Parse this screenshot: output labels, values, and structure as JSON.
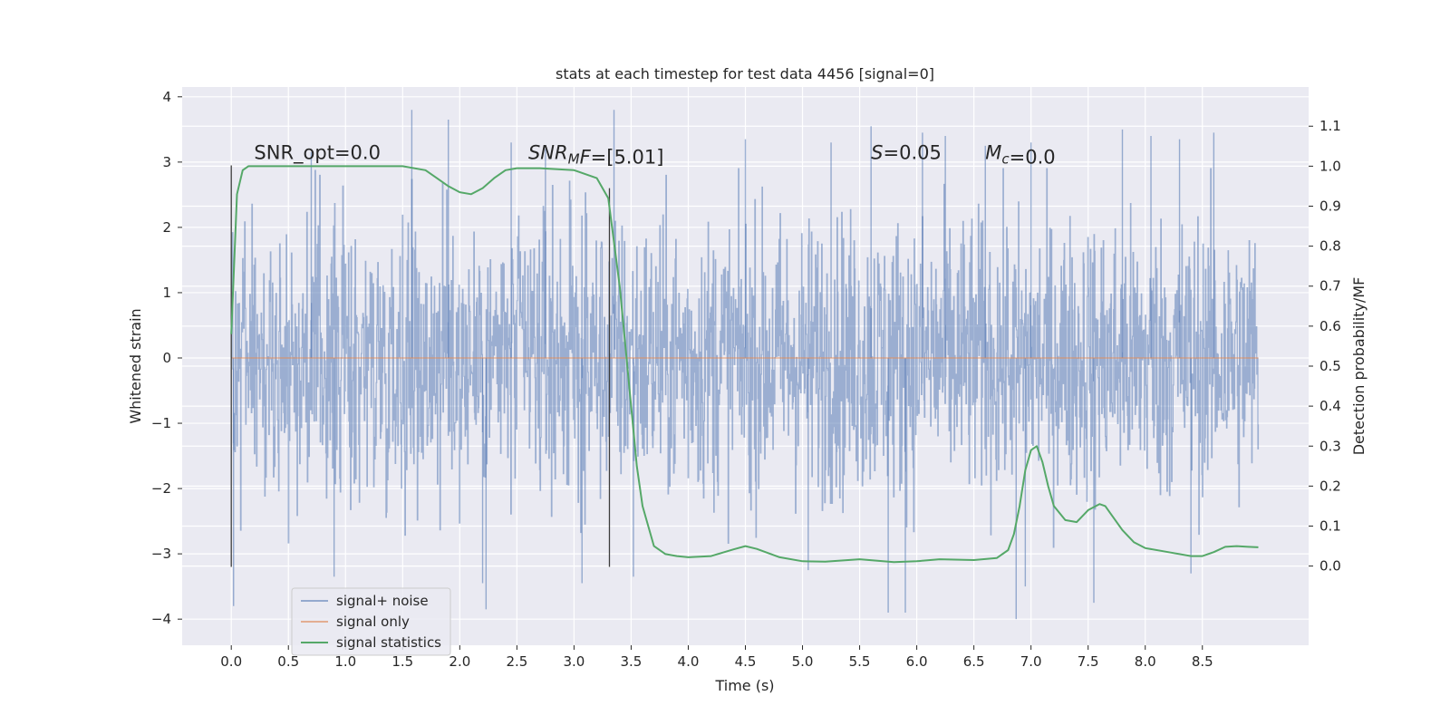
{
  "chart_data": {
    "type": "line",
    "title": "stats at each timestep for test data 4456 [signal=0]",
    "xlabel": "Time (s)",
    "ylabel": "Whitened strain",
    "y2label": "Detection probability/MF",
    "xlim": [
      -0.43,
      9.43
    ],
    "ylim": [
      -4.4,
      4.15
    ],
    "y2lim": [
      -0.198,
      1.198
    ],
    "x_ticks": [
      0.0,
      0.5,
      1.0,
      1.5,
      2.0,
      2.5,
      3.0,
      3.5,
      4.0,
      4.5,
      5.0,
      5.5,
      6.0,
      6.5,
      7.0,
      7.5,
      8.0,
      8.5
    ],
    "x_tick_labels": [
      "0.0",
      "0.5",
      "1.0",
      "1.5",
      "2.0",
      "2.5",
      "3.0",
      "3.5",
      "4.0",
      "4.5",
      "5.0",
      "5.5",
      "6.0",
      "6.5",
      "7.0",
      "7.5",
      "8.0",
      "8.5"
    ],
    "y_ticks": [
      -4,
      -3,
      -2,
      -1,
      0,
      1,
      2,
      3,
      4
    ],
    "y_tick_labels": [
      "−4",
      "−3",
      "−2",
      "−1",
      "0",
      "1",
      "2",
      "3",
      "4"
    ],
    "y2_ticks": [
      0.0,
      0.1,
      0.2,
      0.3,
      0.4,
      0.5,
      0.6,
      0.7,
      0.8,
      0.9,
      1.0,
      1.1
    ],
    "y2_tick_labels": [
      "0.0",
      "0.1",
      "0.2",
      "0.3",
      "0.4",
      "0.5",
      "0.6",
      "0.7",
      "0.8",
      "0.9",
      "1.0",
      "1.1"
    ],
    "grid": true,
    "legend_position": "lower-left",
    "annotations": [
      {
        "x": 0.2,
        "y": 3.05,
        "parts": [
          {
            "t": "SNR_opt=0.0",
            "i": false
          }
        ]
      },
      {
        "x": 2.6,
        "y": 3.05,
        "parts": [
          {
            "t": "SNR",
            "i": true
          },
          {
            "t": "M",
            "i": true,
            "sub": true
          },
          {
            "t": "F",
            "i": true
          },
          {
            "t": "=[5.01]",
            "i": false
          }
        ]
      },
      {
        "x": 5.6,
        "y": 3.05,
        "parts": [
          {
            "t": "S",
            "i": true
          },
          {
            "t": "=0.05",
            "i": false
          }
        ]
      },
      {
        "x": 6.6,
        "y": 3.05,
        "parts": [
          {
            "t": "M",
            "i": true
          },
          {
            "t": "c",
            "i": true,
            "sub": true
          },
          {
            "t": "=0.0",
            "i": false
          }
        ]
      }
    ],
    "vertical_lines": [
      {
        "x": 0.0,
        "ymin": -3.2,
        "ymax": 2.95
      },
      {
        "x": 3.31,
        "ymin": -3.2,
        "ymax": 2.6
      }
    ],
    "series": [
      {
        "name": "signal+ noise",
        "color": "#4c72b0",
        "axis": "left",
        "style": "noise",
        "x_range": [
          0.0,
          8.99
        ],
        "samples": 2000,
        "base_amplitude": 1.95,
        "peaks": [
          {
            "x": 0.02,
            "y": -3.8
          },
          {
            "x": 1.58,
            "y": 3.8
          },
          {
            "x": 1.9,
            "y": 3.65
          },
          {
            "x": 3.35,
            "y": 3.8
          },
          {
            "x": 2.2,
            "y": -3.45
          },
          {
            "x": 2.23,
            "y": -3.85
          },
          {
            "x": 0.9,
            "y": -3.35
          },
          {
            "x": 6.87,
            "y": -4.0
          },
          {
            "x": 5.75,
            "y": -3.9
          },
          {
            "x": 7.55,
            "y": -3.75
          },
          {
            "x": 3.07,
            "y": -3.45
          },
          {
            "x": 3.52,
            "y": -3.35
          },
          {
            "x": 8.4,
            "y": -3.3
          },
          {
            "x": 5.05,
            "y": -3.25
          },
          {
            "x": 5.9,
            "y": -3.9
          },
          {
            "x": 6.95,
            "y": -3.5
          },
          {
            "x": 4.5,
            "y": 3.35
          },
          {
            "x": 5.6,
            "y": 3.55
          },
          {
            "x": 6.05,
            "y": 3.45
          },
          {
            "x": 6.25,
            "y": 3.4
          },
          {
            "x": 7.8,
            "y": 3.5
          },
          {
            "x": 8.05,
            "y": 3.4
          },
          {
            "x": 8.6,
            "y": 3.45
          },
          {
            "x": 2.45,
            "y": 3.3
          },
          {
            "x": 2.75,
            "y": 3.2
          },
          {
            "x": 0.7,
            "y": 3.15
          },
          {
            "x": 5.25,
            "y": 3.3
          },
          {
            "x": 6.6,
            "y": 3.25
          },
          {
            "x": 7.0,
            "y": 3.3
          },
          {
            "x": 8.3,
            "y": 3.35
          }
        ]
      },
      {
        "name": "signal only",
        "color": "#dd8452",
        "axis": "left",
        "x": [
          0.0,
          8.99
        ],
        "y": [
          0.0,
          0.0
        ]
      },
      {
        "name": "signal statistics",
        "color": "#55a868",
        "axis": "right",
        "x": [
          0.0,
          0.05,
          0.1,
          0.15,
          0.2,
          0.3,
          0.5,
          1.0,
          1.5,
          1.7,
          1.8,
          1.9,
          2.0,
          2.1,
          2.2,
          2.3,
          2.4,
          2.5,
          2.7,
          3.0,
          3.2,
          3.3,
          3.4,
          3.5,
          3.55,
          3.6,
          3.65,
          3.7,
          3.8,
          3.9,
          4.0,
          4.2,
          4.4,
          4.5,
          4.6,
          4.8,
          5.0,
          5.2,
          5.5,
          5.8,
          6.0,
          6.2,
          6.5,
          6.7,
          6.8,
          6.85,
          6.9,
          6.95,
          7.0,
          7.05,
          7.1,
          7.15,
          7.2,
          7.3,
          7.4,
          7.5,
          7.6,
          7.65,
          7.7,
          7.8,
          7.9,
          8.0,
          8.2,
          8.4,
          8.5,
          8.6,
          8.7,
          8.8,
          8.9,
          8.99
        ],
        "y": [
          0.58,
          0.93,
          0.99,
          1.0,
          1.0,
          1.0,
          1.0,
          1.0,
          1.0,
          0.99,
          0.97,
          0.95,
          0.935,
          0.93,
          0.945,
          0.97,
          0.99,
          0.995,
          0.995,
          0.99,
          0.97,
          0.92,
          0.7,
          0.4,
          0.25,
          0.15,
          0.1,
          0.05,
          0.03,
          0.025,
          0.022,
          0.025,
          0.042,
          0.05,
          0.043,
          0.022,
          0.012,
          0.011,
          0.017,
          0.01,
          0.012,
          0.017,
          0.015,
          0.02,
          0.04,
          0.08,
          0.15,
          0.24,
          0.29,
          0.3,
          0.26,
          0.2,
          0.15,
          0.115,
          0.11,
          0.14,
          0.155,
          0.15,
          0.13,
          0.09,
          0.06,
          0.045,
          0.035,
          0.025,
          0.025,
          0.035,
          0.048,
          0.05,
          0.048,
          0.047
        ]
      }
    ]
  }
}
